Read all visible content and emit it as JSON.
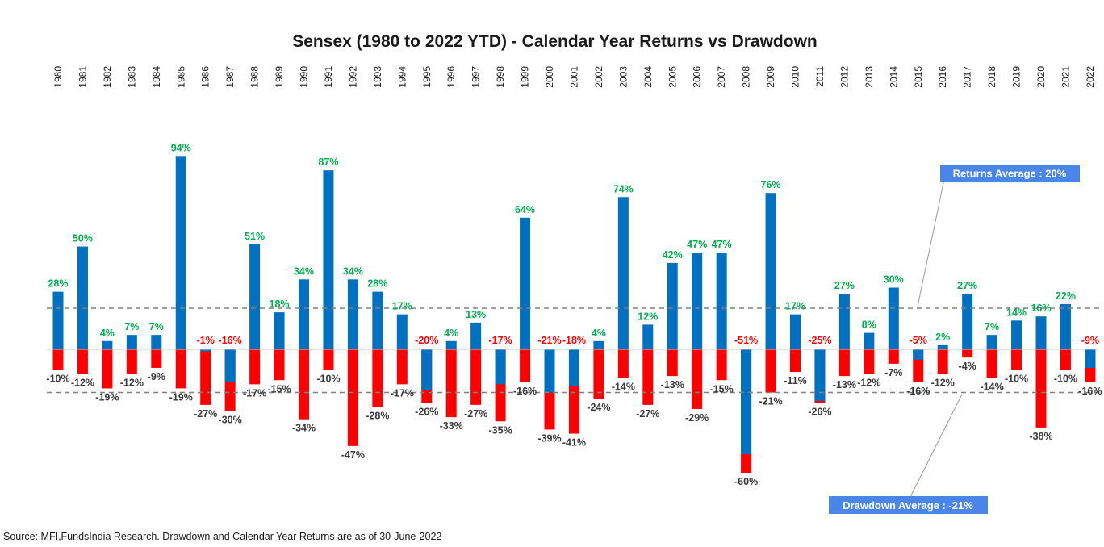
{
  "colors": {
    "returns_positive": "#0070C0",
    "returns_negative": "#FF0000",
    "label_positive": "#00B050",
    "label_negative": "#FF0000",
    "drawdown_label": "#3A3A3A",
    "avg_box": "#4A86E8",
    "avg_line": "#808080"
  },
  "chart_data": {
    "type": "bar",
    "title": "Sensex (1980 to 2022 YTD) - Calendar Year Returns vs Drawdown",
    "categories": [
      "1980",
      "1981",
      "1982",
      "1983",
      "1984",
      "1985",
      "1986",
      "1987",
      "1988",
      "1989",
      "1990",
      "1991",
      "1992",
      "1993",
      "1994",
      "1995",
      "1996",
      "1997",
      "1998",
      "1999",
      "2000",
      "2001",
      "2002",
      "2003",
      "2004",
      "2005",
      "2006",
      "2007",
      "2008",
      "2009",
      "2010",
      "2011",
      "2012",
      "2013",
      "2014",
      "2015",
      "2016",
      "2017",
      "2018",
      "2019",
      "2020",
      "2021",
      "2022"
    ],
    "series": [
      {
        "name": "Calendar Year Returns",
        "values": [
          28,
          50,
          4,
          7,
          7,
          94,
          -1,
          -16,
          51,
          18,
          34,
          87,
          34,
          28,
          17,
          -20,
          4,
          13,
          -17,
          64,
          -21,
          -18,
          4,
          74,
          12,
          42,
          47,
          47,
          -51,
          76,
          17,
          -25,
          27,
          8,
          30,
          -5,
          2,
          27,
          7,
          14,
          16,
          22,
          -9
        ],
        "labels": [
          "28%",
          "50%",
          "4%",
          "7%",
          "7%",
          "94%",
          "-1%",
          "-16%",
          "51%",
          "18%",
          "34%",
          "87%",
          "34%",
          "28%",
          "17%",
          "-20%",
          "4%",
          "13%",
          "-17%",
          "64%",
          "-21%",
          "-18%",
          "4%",
          "74%",
          "12%",
          "42%",
          "47%",
          "47%",
          "-51%",
          "76%",
          "17%",
          "-25%",
          "27%",
          "8%",
          "30%",
          "-5%",
          "2%",
          "27%",
          "7%",
          "14%",
          "16%",
          "22%",
          "-9%"
        ]
      },
      {
        "name": "Drawdown",
        "values": [
          -10,
          -12,
          -19,
          -12,
          -9,
          -19,
          -27,
          -30,
          -17,
          -15,
          -34,
          -10,
          -47,
          -28,
          -17,
          -26,
          -33,
          -27,
          -35,
          -16,
          -39,
          -41,
          -24,
          -14,
          -27,
          -13,
          -29,
          -15,
          -60,
          -21,
          -11,
          -26,
          -13,
          -12,
          -7,
          -16,
          -12,
          -4,
          -14,
          -10,
          -38,
          -10,
          -16
        ],
        "labels": [
          "-10%",
          "-12%",
          "-19%",
          "-12%",
          "-9%",
          "-19%",
          "-27%",
          "-30%",
          "-17%",
          "-15%",
          "-34%",
          "-10%",
          "-47%",
          "-28%",
          "-17%",
          "-26%",
          "-33%",
          "-27%",
          "-35%",
          "-16%",
          "-39%",
          "-41%",
          "-24%",
          "-14%",
          "-27%",
          "-13%",
          "-29%",
          "-15%",
          "-60%",
          "-21%",
          "-11%",
          "-26%",
          "-13%",
          "-12%",
          "-7%",
          "-16%",
          "-12%",
          "-4%",
          "-14%",
          "-10%",
          "-38%",
          "-10%",
          "-16%"
        ]
      }
    ],
    "averages": {
      "returns": {
        "value": 20,
        "label": "Returns Average : 20%"
      },
      "drawdown": {
        "value": -21,
        "label": "Drawdown Average : -21%"
      }
    },
    "ylim": [
      -62,
      96
    ],
    "grid": false,
    "legend": "none"
  },
  "source": "Source: MFI,FundsIndia Research. Drawdown and Calendar Year Returns are as of 30-June-2022"
}
